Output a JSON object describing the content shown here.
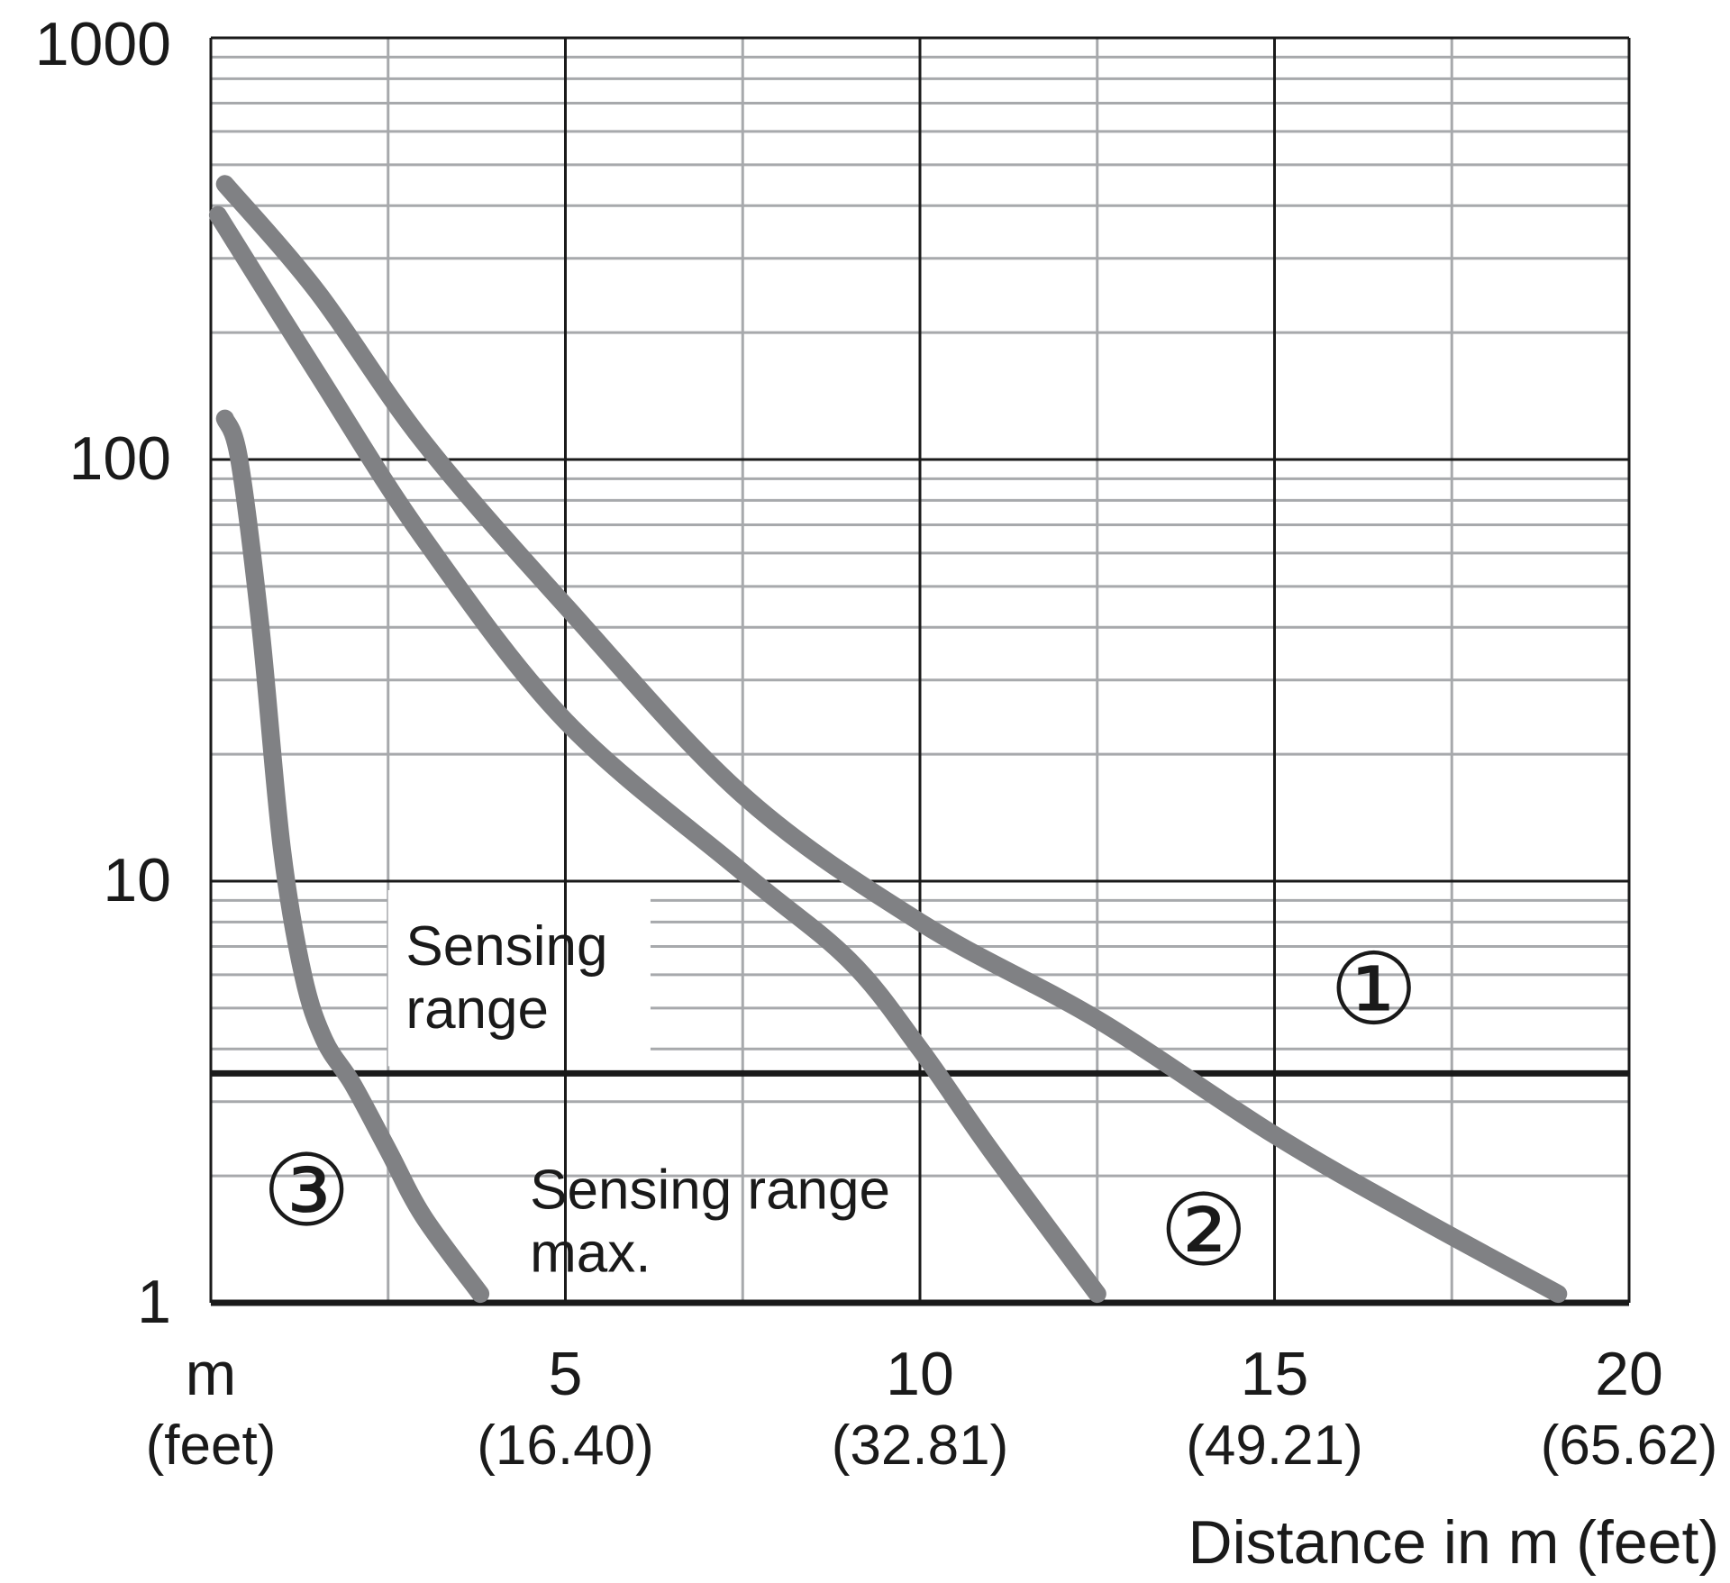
{
  "chart_data": {
    "type": "line",
    "x_scale": "linear",
    "y_scale": "log",
    "xlim": [
      0,
      20
    ],
    "ylim": [
      1,
      1000
    ],
    "grid": true,
    "x_ticks": [
      {
        "value": 0,
        "label": "m",
        "sublabel": "(feet)"
      },
      {
        "value": 5,
        "label": "5",
        "sublabel": "(16.40)"
      },
      {
        "value": 10,
        "label": "10",
        "sublabel": "(32.81)"
      },
      {
        "value": 15,
        "label": "15",
        "sublabel": "(49.21)"
      },
      {
        "value": 20,
        "label": "20",
        "sublabel": "(65.62)"
      }
    ],
    "y_ticks": [
      {
        "value": 1,
        "label": "1"
      },
      {
        "value": 10,
        "label": "10"
      },
      {
        "value": 100,
        "label": "100"
      },
      {
        "value": 1000,
        "label": "1000"
      }
    ],
    "xlabel": "Distance in m (feet)",
    "ylabel": "",
    "threshold": {
      "value": 3.5,
      "label_above": [
        "Sensing",
        "range"
      ],
      "label_below": [
        "Sensing range",
        "max."
      ]
    },
    "series": [
      {
        "name": "①",
        "color": "#808184",
        "points": [
          [
            0.2,
            450
          ],
          [
            1.5,
            250
          ],
          [
            3,
            110
          ],
          [
            5,
            45
          ],
          [
            7.5,
            16
          ],
          [
            10,
            8
          ],
          [
            12.5,
            4.7
          ],
          [
            15,
            2.5
          ],
          [
            17,
            1.6
          ],
          [
            19,
            1.05
          ]
        ]
      },
      {
        "name": "②",
        "color": "#808184",
        "points": [
          [
            0.1,
            380
          ],
          [
            1.5,
            160
          ],
          [
            3,
            65
          ],
          [
            5,
            24
          ],
          [
            7.5,
            10.5
          ],
          [
            9,
            6.5
          ],
          [
            10,
            4
          ],
          [
            11,
            2.3
          ],
          [
            12.5,
            1.05
          ]
        ]
      },
      {
        "name": "③",
        "color": "#808184",
        "points": [
          [
            0.2,
            125
          ],
          [
            0.4,
            100
          ],
          [
            0.7,
            40
          ],
          [
            1,
            12
          ],
          [
            1.3,
            6
          ],
          [
            1.6,
            4.2
          ],
          [
            2,
            3.3
          ],
          [
            2.5,
            2.3
          ],
          [
            3,
            1.6
          ],
          [
            3.8,
            1.05
          ]
        ]
      }
    ]
  }
}
